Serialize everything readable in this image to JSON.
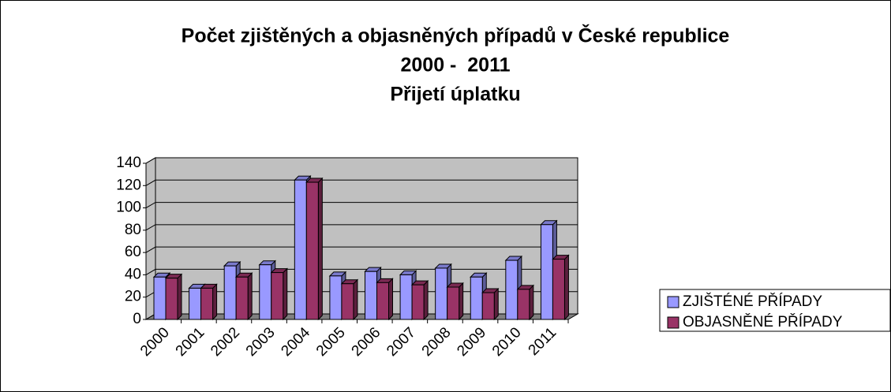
{
  "chart_data": {
    "type": "bar3d",
    "title": [
      "Počet zjištěných a objasněných případů v České republice",
      "2000 -  2011",
      "Přijetí úplatku"
    ],
    "categories": [
      "2000",
      "2001",
      "2002",
      "2003",
      "2004",
      "2005",
      "2006",
      "2007",
      "2008",
      "2009",
      "2010",
      "2011"
    ],
    "series": [
      {
        "name": "ZJIŠTÉNÉ PŘÍPADY",
        "color": "#9999ff",
        "values": [
          38,
          28,
          48,
          49,
          125,
          39,
          43,
          40,
          46,
          38,
          53,
          85
        ]
      },
      {
        "name": "OBJASNĚNÉ PŘÍPADY",
        "color": "#993366",
        "values": [
          37,
          28,
          38,
          42,
          123,
          32,
          33,
          31,
          29,
          24,
          27,
          54
        ]
      }
    ],
    "ylim": [
      0,
      140
    ],
    "yticks": [
      0,
      20,
      40,
      60,
      80,
      100,
      120,
      140
    ],
    "grid": true,
    "legend": "right"
  }
}
